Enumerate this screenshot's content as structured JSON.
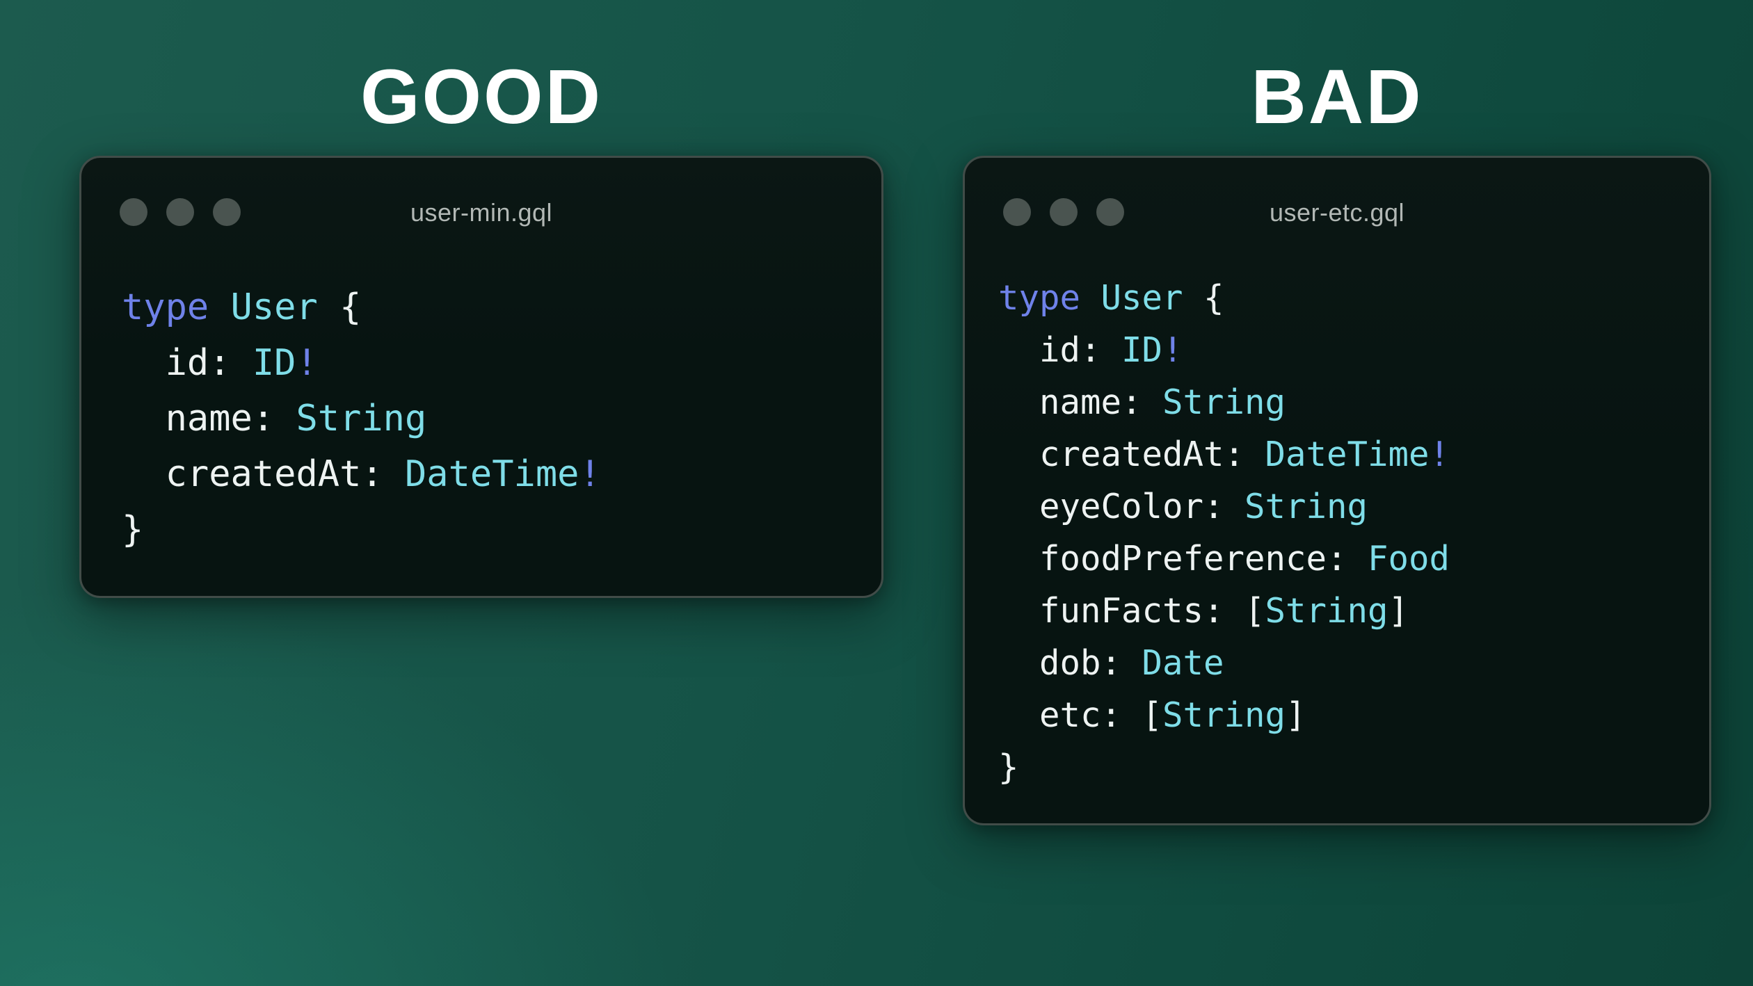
{
  "colors": {
    "keyword": "#6f82e9",
    "type_name": "#7fdde8",
    "plain_code": "#eef3f2",
    "heading_text": "#ffffff",
    "window_title_text": "#b2b8b5",
    "window_control_dot": "#4a5450",
    "window_background": "#071411",
    "window_border": "#414c48"
  },
  "panels": [
    {
      "heading": "GOOD",
      "window": {
        "title": "user-min.gql",
        "dot_count": 3,
        "code_lines": [
          [
            {
              "t": "type",
              "c": "kw"
            },
            {
              "t": " ",
              "c": "pl"
            },
            {
              "t": "User",
              "c": "ty"
            },
            {
              "t": " {",
              "c": "pl"
            }
          ],
          [
            {
              "t": "  id: ",
              "c": "pl"
            },
            {
              "t": "ID",
              "c": "ty"
            },
            {
              "t": "!",
              "c": "kw"
            }
          ],
          [
            {
              "t": "  name: ",
              "c": "pl"
            },
            {
              "t": "String",
              "c": "ty"
            }
          ],
          [
            {
              "t": "  createdAt: ",
              "c": "pl"
            },
            {
              "t": "DateTime",
              "c": "ty"
            },
            {
              "t": "!",
              "c": "kw"
            }
          ],
          [
            {
              "t": "}",
              "c": "pl"
            }
          ]
        ]
      }
    },
    {
      "heading": "BAD",
      "window": {
        "title": "user-etc.gql",
        "dot_count": 3,
        "code_lines": [
          [
            {
              "t": "type",
              "c": "kw"
            },
            {
              "t": " ",
              "c": "pl"
            },
            {
              "t": "User",
              "c": "ty"
            },
            {
              "t": " {",
              "c": "pl"
            }
          ],
          [
            {
              "t": "  id: ",
              "c": "pl"
            },
            {
              "t": "ID",
              "c": "ty"
            },
            {
              "t": "!",
              "c": "kw"
            }
          ],
          [
            {
              "t": "  name: ",
              "c": "pl"
            },
            {
              "t": "String",
              "c": "ty"
            }
          ],
          [
            {
              "t": "  createdAt: ",
              "c": "pl"
            },
            {
              "t": "DateTime",
              "c": "ty"
            },
            {
              "t": "!",
              "c": "kw"
            }
          ],
          [
            {
              "t": "  eyeColor: ",
              "c": "pl"
            },
            {
              "t": "String",
              "c": "ty"
            }
          ],
          [
            {
              "t": "  foodPreference: ",
              "c": "pl"
            },
            {
              "t": "Food",
              "c": "ty"
            }
          ],
          [
            {
              "t": "  funFacts: [",
              "c": "pl"
            },
            {
              "t": "String",
              "c": "ty"
            },
            {
              "t": "]",
              "c": "pl"
            }
          ],
          [
            {
              "t": "  dob: ",
              "c": "pl"
            },
            {
              "t": "Date",
              "c": "ty"
            }
          ],
          [
            {
              "t": "  etc: [",
              "c": "pl"
            },
            {
              "t": "String",
              "c": "ty"
            },
            {
              "t": "]",
              "c": "pl"
            }
          ],
          [
            {
              "t": "}",
              "c": "pl"
            }
          ]
        ]
      }
    }
  ]
}
